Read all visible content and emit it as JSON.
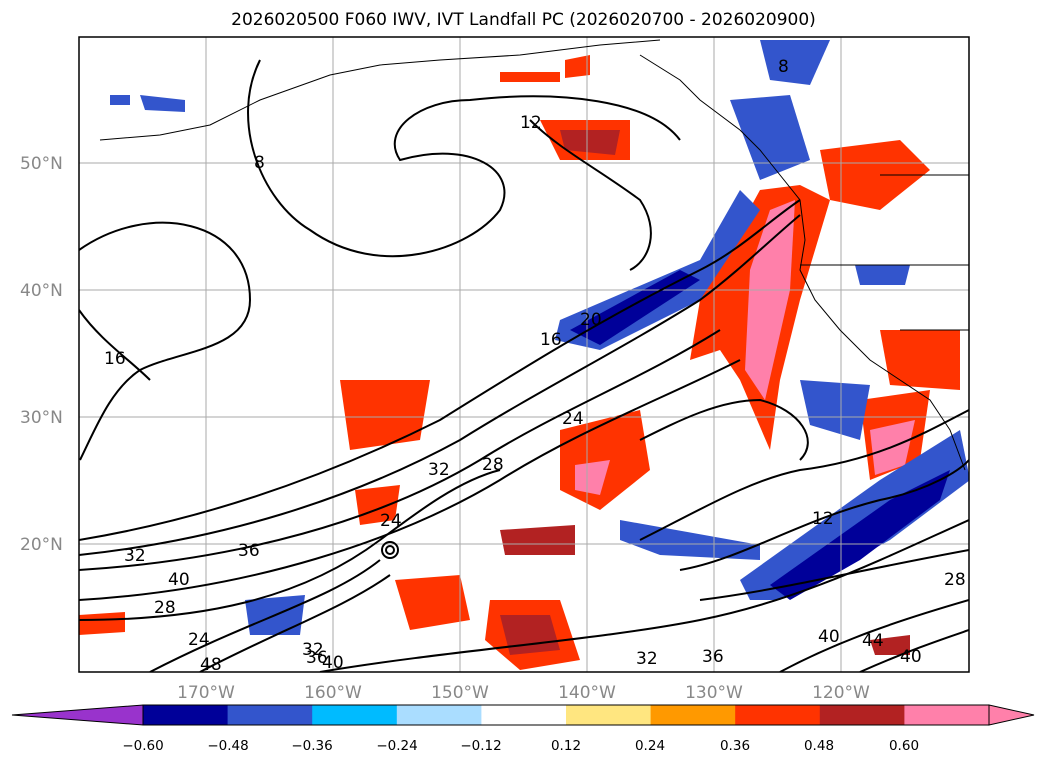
{
  "title": "2026020500 F060 IWV, IVT Landfall PC (2026020700 - 2026020900)",
  "lat_labels": [
    "50°N",
    "40°N",
    "30°N",
    "20°N"
  ],
  "lon_labels": [
    "170°W",
    "160°W",
    "150°W",
    "140°W",
    "130°W",
    "120°W"
  ],
  "colorbar": {
    "ticks": [
      "−0.60",
      "−0.48",
      "−0.36",
      "−0.24",
      "−0.12",
      "0.12",
      "0.24",
      "0.36",
      "0.48",
      "0.60"
    ],
    "colors": [
      "#9933cc",
      "#000099",
      "#3355cc",
      "#00bbff",
      "#aaddff",
      "#ffffff",
      "#ffe680",
      "#ff9900",
      "#ff3300",
      "#b22222",
      "#ff80aa",
      "#ff80aa"
    ]
  },
  "contour_labels": [
    "8",
    "16",
    "12",
    "16",
    "20",
    "24",
    "28",
    "32",
    "36",
    "32",
    "28",
    "40",
    "24",
    "48",
    "32",
    "36",
    "40",
    "12",
    "24",
    "32",
    "36",
    "40",
    "44",
    "40",
    "28",
    "8"
  ],
  "map_extent": {
    "lon_min": -180,
    "lon_max": -110,
    "lat_min": 10,
    "lat_max": 60
  }
}
